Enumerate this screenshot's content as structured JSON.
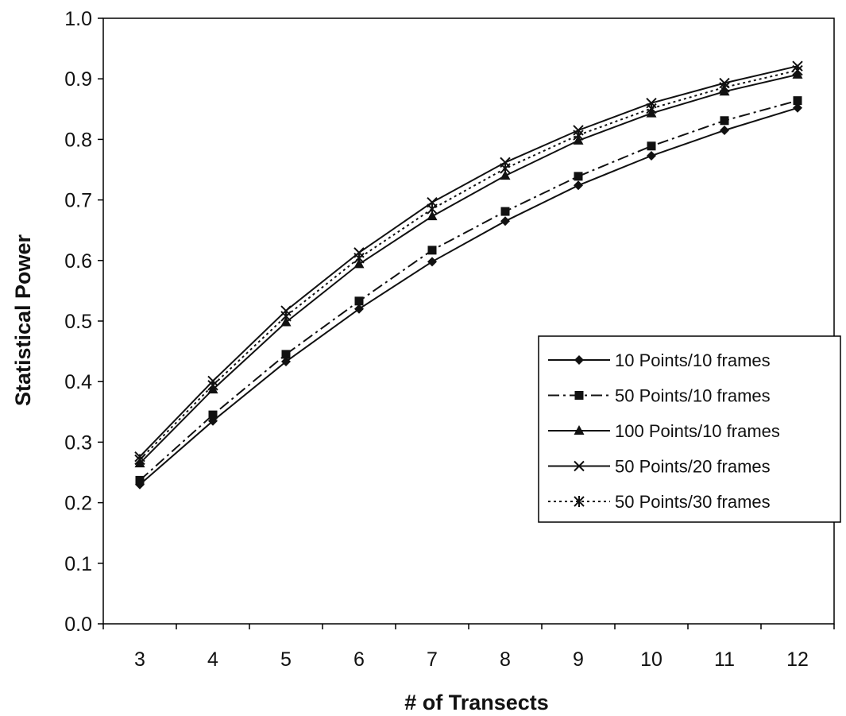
{
  "chart_data": {
    "type": "line",
    "title": "",
    "xlabel": "# of Transects",
    "ylabel": "Statistical Power",
    "x": [
      3,
      4,
      5,
      6,
      7,
      8,
      9,
      10,
      11,
      12
    ],
    "xticks": [
      "3",
      "4",
      "5",
      "6",
      "7",
      "8",
      "9",
      "10",
      "11",
      "12"
    ],
    "yticks": [
      "0.0",
      "0.1",
      "0.2",
      "0.3",
      "0.4",
      "0.5",
      "0.6",
      "0.7",
      "0.8",
      "0.9",
      "1.0"
    ],
    "ylim": [
      0,
      1.0
    ],
    "grid": false,
    "legend_position": "right",
    "series": [
      {
        "name": "10 Points/10 frames",
        "marker": "diamond",
        "dash": "solid",
        "values": [
          0.23,
          0.335,
          0.433,
          0.52,
          0.598,
          0.665,
          0.724,
          0.773,
          0.815,
          0.852
        ]
      },
      {
        "name": "50 Points/10 frames",
        "marker": "square",
        "dash": "dashdot",
        "values": [
          0.237,
          0.345,
          0.445,
          0.533,
          0.617,
          0.681,
          0.739,
          0.789,
          0.831,
          0.864
        ]
      },
      {
        "name": "100 Points/10 frames",
        "marker": "triangle",
        "dash": "solid",
        "values": [
          0.265,
          0.387,
          0.498,
          0.594,
          0.673,
          0.74,
          0.798,
          0.843,
          0.879,
          0.907
        ]
      },
      {
        "name": "50 Points/20 frames",
        "marker": "x",
        "dash": "solid",
        "values": [
          0.276,
          0.401,
          0.517,
          0.613,
          0.696,
          0.762,
          0.815,
          0.86,
          0.893,
          0.921
        ]
      },
      {
        "name": "50 Points/30 frames",
        "marker": "asterisk",
        "dash": "dotted",
        "values": [
          0.271,
          0.394,
          0.508,
          0.604,
          0.685,
          0.752,
          0.807,
          0.851,
          0.886,
          0.914
        ]
      }
    ]
  }
}
